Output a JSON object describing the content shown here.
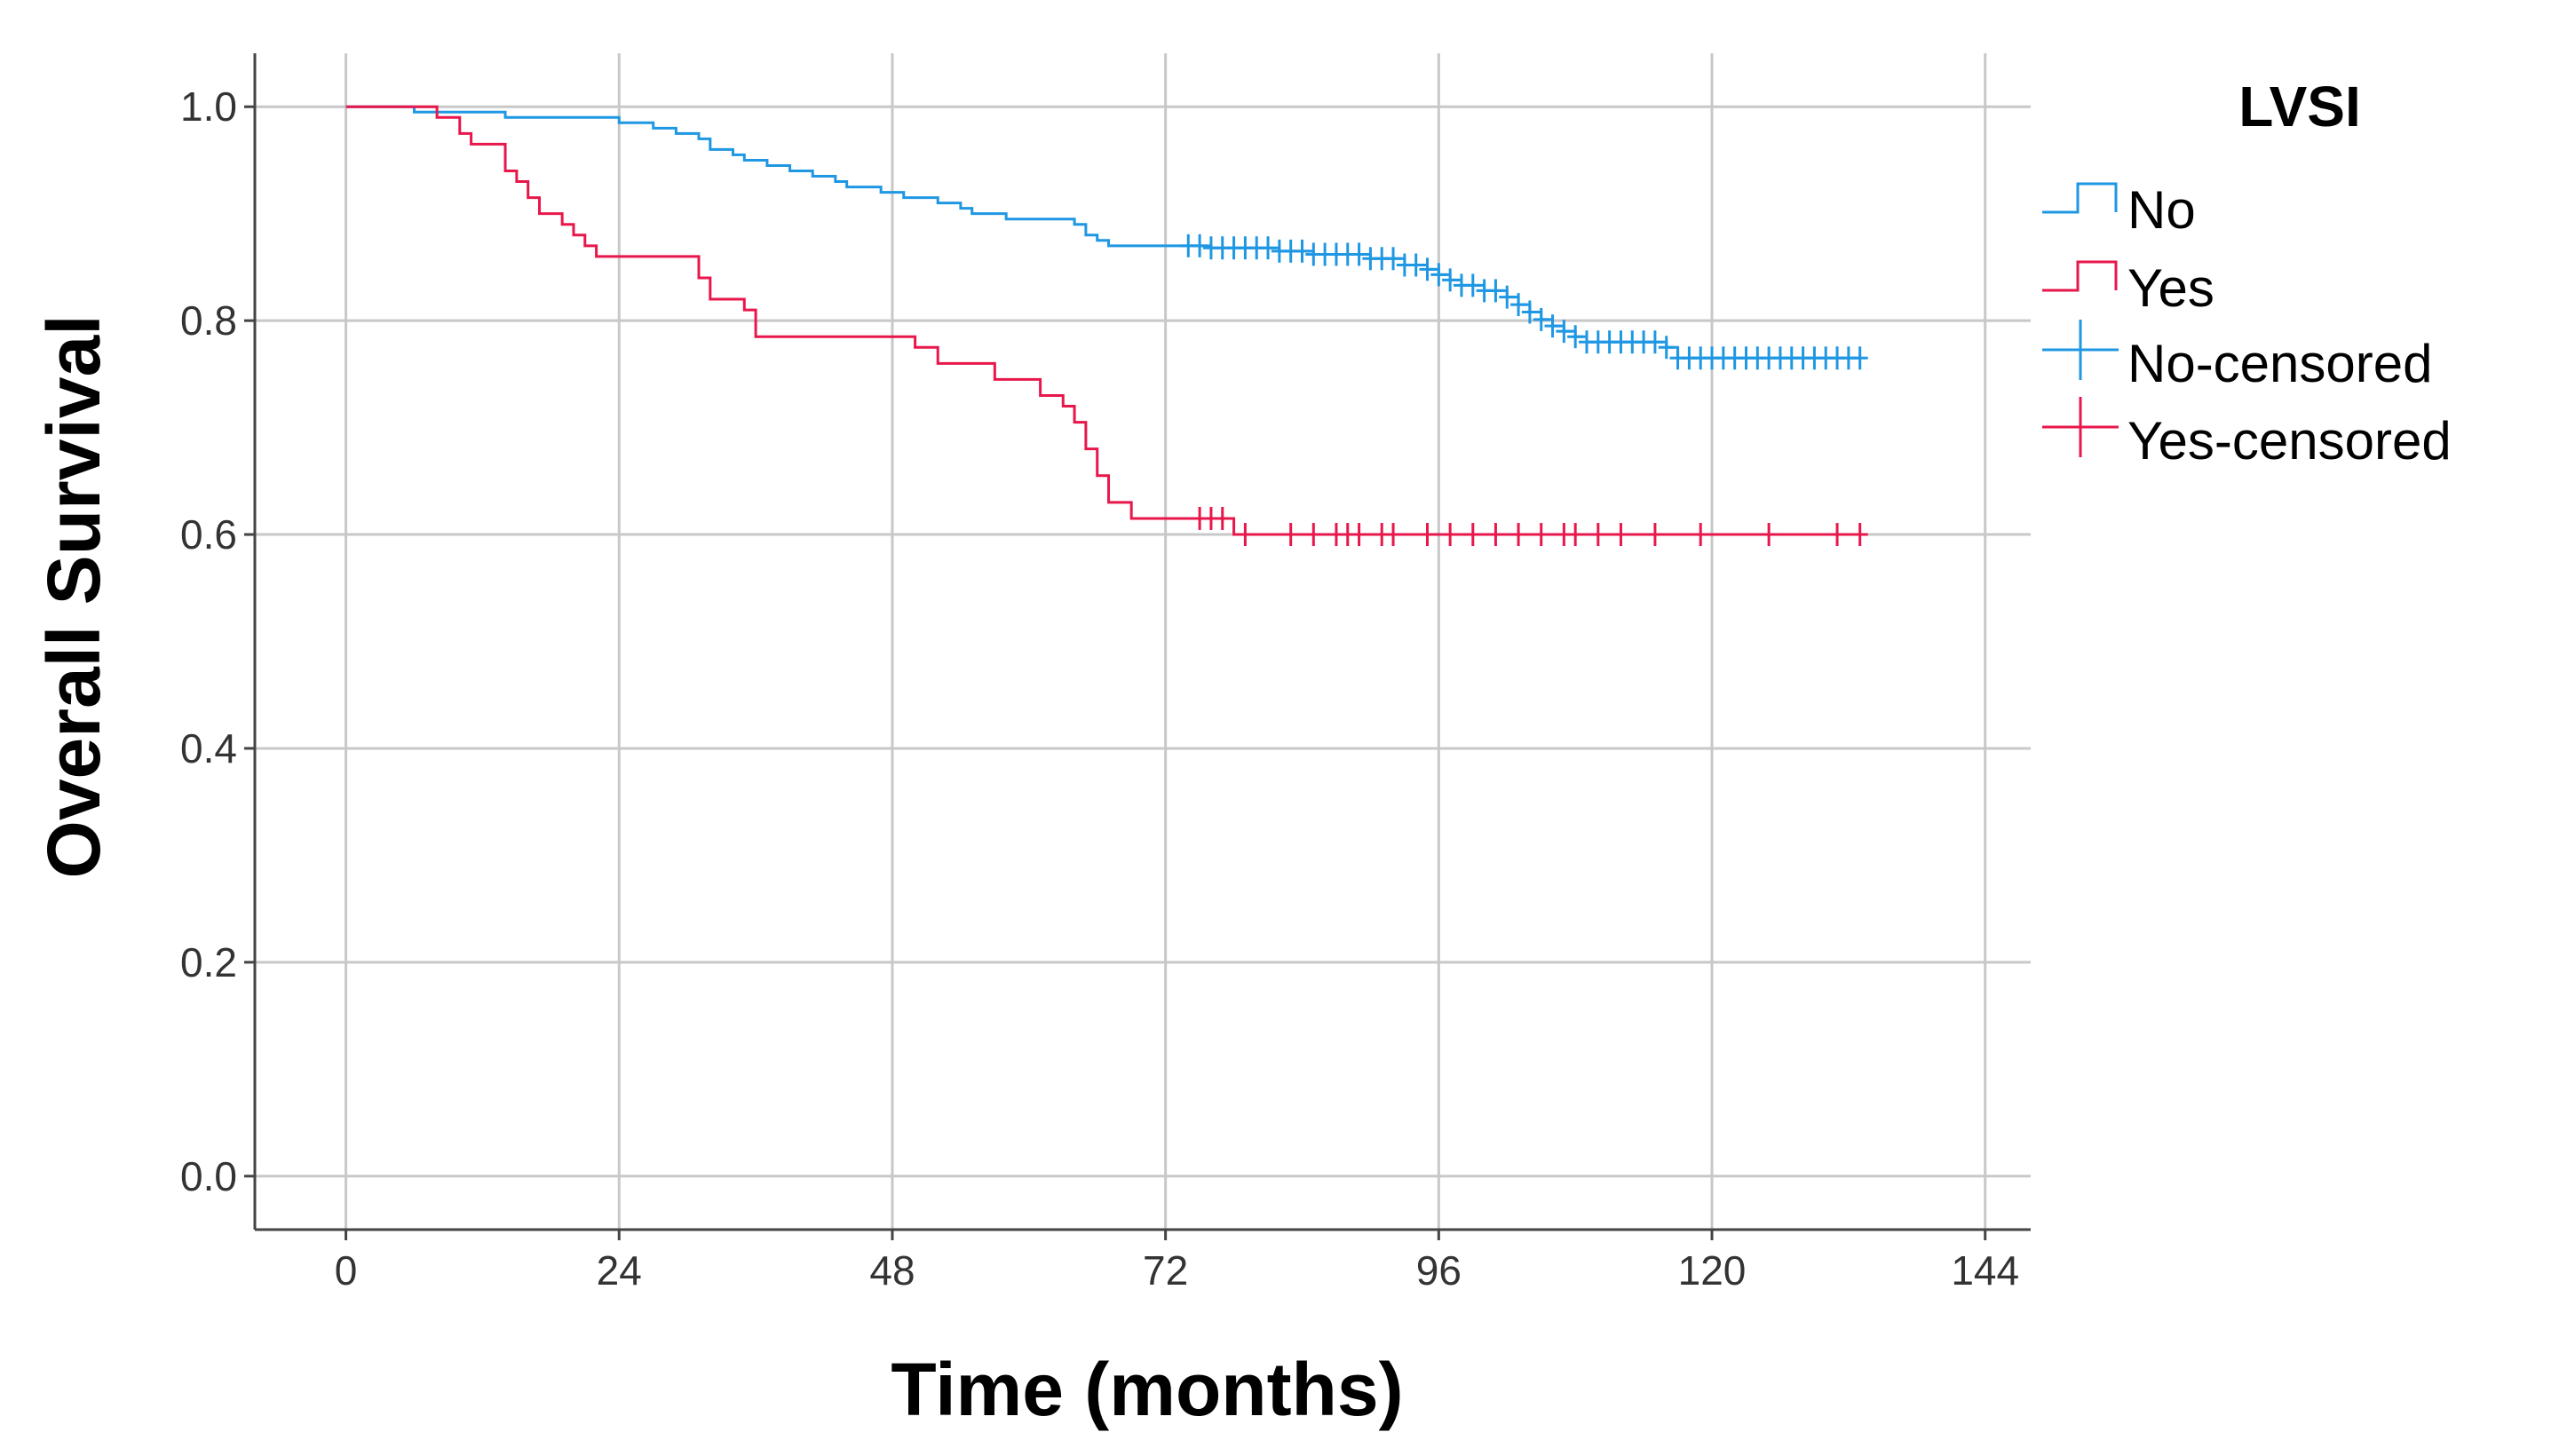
{
  "chart_data": {
    "type": "line",
    "subtype": "kaplan-meier-step",
    "xlabel": "Time (months)",
    "ylabel": "Overall Survival",
    "xlim": [
      -8,
      148
    ],
    "ylim": [
      -0.05,
      1.05
    ],
    "xticks": [
      0,
      24,
      48,
      72,
      96,
      120,
      144
    ],
    "yticks": [
      0.0,
      0.2,
      0.4,
      0.6,
      0.8,
      1.0
    ],
    "xtick_labels": [
      "0",
      "24",
      "48",
      "72",
      "96",
      "120",
      "144"
    ],
    "ytick_labels": [
      "0.0",
      "0.2",
      "0.4",
      "0.6",
      "0.8",
      "1.0"
    ],
    "grid": true,
    "legend": {
      "title": "LVSI",
      "position": "right",
      "entries": [
        "No",
        "Yes",
        "No-censored",
        "Yes-censored"
      ]
    },
    "colors": {
      "no": "#1f97e3",
      "yes": "#e8174b",
      "grid": "#c8c8c8",
      "axis": "#444444"
    },
    "series": [
      {
        "name": "No",
        "color": "#1f97e3",
        "steps": [
          [
            0,
            1.0
          ],
          [
            6,
            0.995
          ],
          [
            14,
            0.99
          ],
          [
            24,
            0.985
          ],
          [
            27,
            0.98
          ],
          [
            29,
            0.975
          ],
          [
            31,
            0.97
          ],
          [
            32,
            0.96
          ],
          [
            34,
            0.955
          ],
          [
            35,
            0.95
          ],
          [
            37,
            0.945
          ],
          [
            39,
            0.94
          ],
          [
            41,
            0.935
          ],
          [
            43,
            0.93
          ],
          [
            44,
            0.925
          ],
          [
            47,
            0.92
          ],
          [
            49,
            0.915
          ],
          [
            52,
            0.91
          ],
          [
            54,
            0.905
          ],
          [
            55,
            0.9
          ],
          [
            58,
            0.895
          ],
          [
            64,
            0.89
          ],
          [
            65,
            0.88
          ],
          [
            66,
            0.875
          ],
          [
            67,
            0.87
          ],
          [
            76,
            0.868
          ],
          [
            82,
            0.865
          ],
          [
            85,
            0.862
          ],
          [
            90,
            0.858
          ],
          [
            93,
            0.852
          ],
          [
            95,
            0.848
          ],
          [
            96,
            0.843
          ],
          [
            97,
            0.838
          ],
          [
            98,
            0.833
          ],
          [
            100,
            0.828
          ],
          [
            102,
            0.822
          ],
          [
            103,
            0.815
          ],
          [
            104,
            0.808
          ],
          [
            105,
            0.801
          ],
          [
            106,
            0.795
          ],
          [
            107,
            0.79
          ],
          [
            108,
            0.785
          ],
          [
            109,
            0.78
          ],
          [
            116,
            0.775
          ],
          [
            117,
            0.765
          ],
          [
            133,
            0.765
          ]
        ],
        "censored": [
          74,
          75,
          76,
          77,
          78,
          79,
          80,
          81,
          82,
          83,
          84,
          85,
          86,
          87,
          88,
          89,
          90,
          91,
          92,
          93,
          94,
          95,
          96,
          97,
          98,
          99,
          100,
          101,
          102,
          103,
          104,
          105,
          106,
          107,
          108,
          109,
          110,
          111,
          112,
          113,
          114,
          115,
          116,
          117,
          118,
          119,
          120,
          121,
          122,
          123,
          124,
          125,
          126,
          127,
          128,
          129,
          130,
          131,
          132,
          133
        ]
      },
      {
        "name": "Yes",
        "color": "#e8174b",
        "steps": [
          [
            0,
            1.0
          ],
          [
            8,
            0.99
          ],
          [
            10,
            0.975
          ],
          [
            11,
            0.965
          ],
          [
            14,
            0.94
          ],
          [
            15,
            0.93
          ],
          [
            16,
            0.915
          ],
          [
            17,
            0.9
          ],
          [
            19,
            0.89
          ],
          [
            20,
            0.88
          ],
          [
            21,
            0.87
          ],
          [
            22,
            0.86
          ],
          [
            31,
            0.84
          ],
          [
            32,
            0.82
          ],
          [
            35,
            0.81
          ],
          [
            36,
            0.785
          ],
          [
            50,
            0.775
          ],
          [
            52,
            0.76
          ],
          [
            57,
            0.745
          ],
          [
            61,
            0.73
          ],
          [
            63,
            0.72
          ],
          [
            64,
            0.705
          ],
          [
            65,
            0.68
          ],
          [
            66,
            0.655
          ],
          [
            67,
            0.63
          ],
          [
            69,
            0.615
          ],
          [
            78,
            0.6
          ],
          [
            133,
            0.6
          ]
        ],
        "censored": [
          75,
          76,
          77,
          79,
          83,
          85,
          87,
          88,
          89,
          91,
          92,
          95,
          97,
          99,
          101,
          103,
          105,
          107,
          108,
          110,
          112,
          115,
          119,
          125,
          131,
          133
        ]
      }
    ]
  }
}
